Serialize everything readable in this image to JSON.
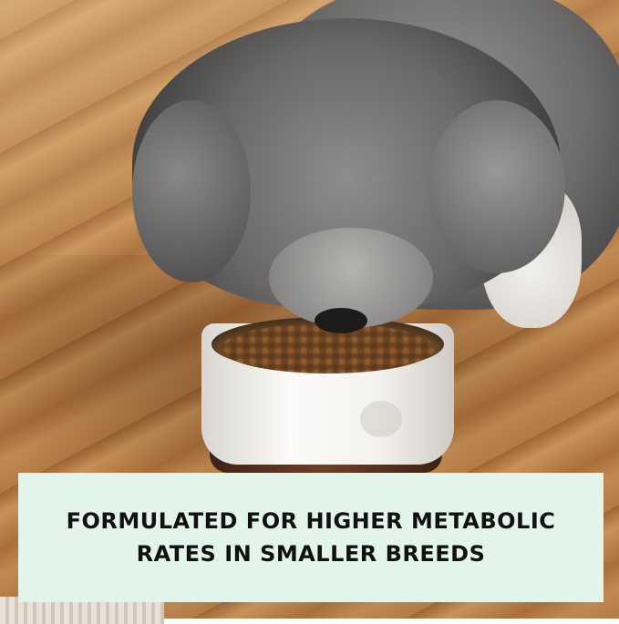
{
  "banner": {
    "line1_highlight": "FORMULATED",
    "line1_rest": " FOR HIGHER METABOLIC",
    "line2": "RATES IN SMALLER BREEDS",
    "background_color": "#e3f5ea",
    "underline_color": "#2e9e4f"
  },
  "photo": {
    "subject": "dog-eating-from-bowl"
  }
}
